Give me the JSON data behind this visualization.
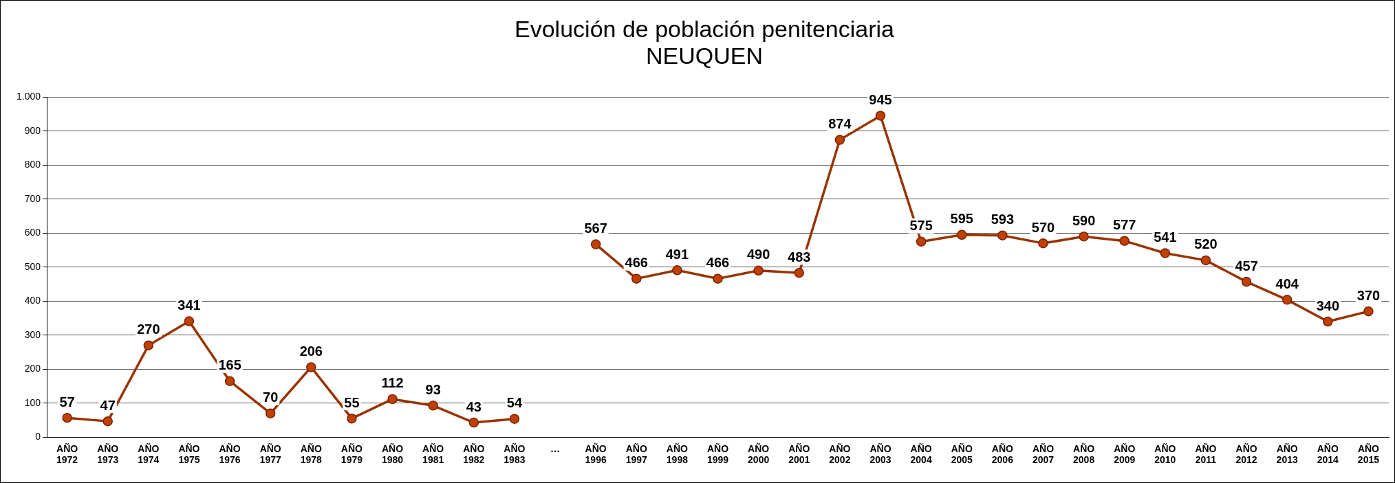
{
  "chart_data": {
    "type": "line",
    "title": "Evolución de población penitenciaria\nNEUQUEN",
    "categories": [
      "AÑO 1972",
      "AÑO 1973",
      "AÑO 1974",
      "AÑO 1975",
      "AÑO 1976",
      "AÑO 1977",
      "AÑO 1978",
      "AÑO 1979",
      "AÑO 1980",
      "AÑO 1981",
      "AÑO 1982",
      "AÑO 1983",
      "…",
      "AÑO 1996",
      "AÑO 1997",
      "AÑO 1998",
      "AÑO 1999",
      "AÑO 2000",
      "AÑO 2001",
      "AÑO 2002",
      "AÑO 2003",
      "AÑO 2004",
      "AÑO 2005",
      "AÑO 2006",
      "AÑO 2007",
      "AÑO 2008",
      "AÑO 2009",
      "AÑO 2010",
      "AÑO 2011",
      "AÑO 2012",
      "AÑO 2013",
      "AÑO 2014",
      "AÑO 2015"
    ],
    "series": [
      {
        "color": "#993300",
        "values": [
          57,
          47,
          270,
          341,
          165,
          70,
          206,
          55,
          112,
          93,
          43,
          54,
          null,
          567,
          466,
          491,
          466,
          490,
          483,
          874,
          945,
          575,
          595,
          593,
          570,
          590,
          577,
          541,
          520,
          457,
          404,
          340,
          370
        ]
      }
    ],
    "ylim": [
      0,
      1000
    ],
    "yticks": [
      0,
      100,
      200,
      300,
      400,
      500,
      600,
      700,
      800,
      900,
      {
        "value": 1000,
        "label": "1.000"
      }
    ],
    "grid": "y",
    "legend": false,
    "marker": "circle",
    "line_style": "solid",
    "data_labels": true
  }
}
